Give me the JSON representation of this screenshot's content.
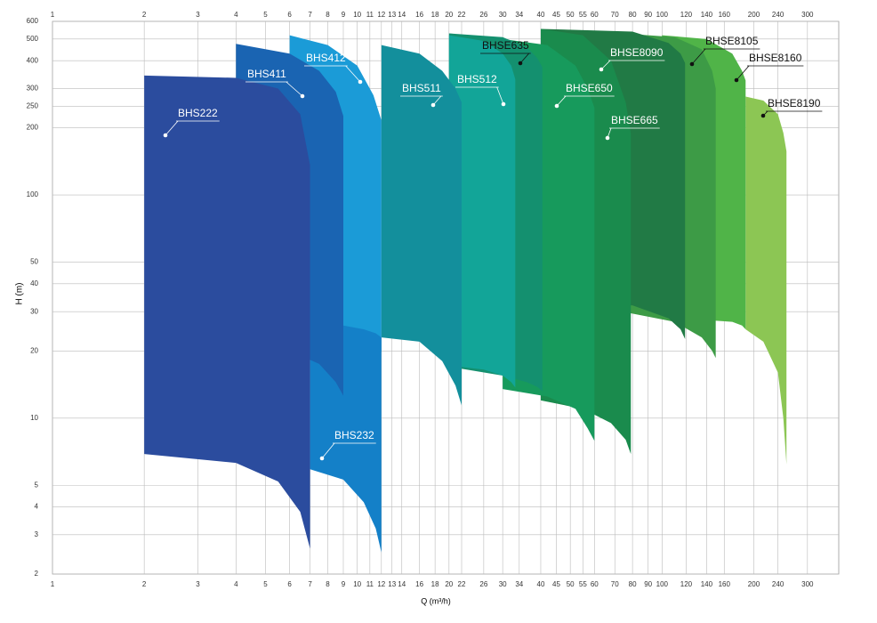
{
  "chart_data": {
    "type": "range-area",
    "x_label": "Q (m³/h)",
    "y_label": "H (m)",
    "x_log": true,
    "y_log": true,
    "grid": true,
    "xlim": [
      1,
      380
    ],
    "ylim": [
      2,
      600
    ],
    "xticks": [
      1,
      2,
      3,
      4,
      5,
      6,
      7,
      8,
      9,
      10,
      11,
      12,
      13,
      14,
      16,
      18,
      20,
      22,
      26,
      30,
      34,
      40,
      45,
      50,
      55,
      60,
      70,
      80,
      90,
      100,
      120,
      140,
      160,
      200,
      240,
      300
    ],
    "yticks": [
      2,
      3,
      4,
      5,
      10,
      20,
      30,
      40,
      50,
      100,
      200,
      250,
      300,
      400,
      500,
      600
    ],
    "series": [
      {
        "name": "BHS222",
        "color": "#2b4c9e",
        "x": [
          2,
          4,
          5.5,
          6.5,
          7
        ],
        "top": [
          343,
          335,
          300,
          230,
          136
        ],
        "bottom": [
          6.9,
          6.3,
          5.2,
          3.8,
          2.6
        ]
      },
      {
        "name": "BHS411",
        "color": "#1a64b2",
        "x": [
          4,
          6,
          7.5,
          8.5,
          9
        ],
        "top": [
          476,
          430,
          360,
          290,
          226
        ],
        "bottom": [
          21,
          20,
          17.5,
          14.5,
          12.6
        ]
      },
      {
        "name": "BHS232",
        "color": "#1480c8",
        "x": [
          7,
          9,
          10.5,
          11.5,
          12
        ],
        "top": [
          26,
          26,
          25,
          24,
          23
        ],
        "bottom": [
          5.9,
          5.3,
          4.2,
          3.2,
          2.5
        ]
      },
      {
        "name": "BHS412",
        "color": "#1b9bd7",
        "x": [
          6,
          8,
          10,
          11.3,
          12
        ],
        "top": [
          520,
          470,
          380,
          280,
          216
        ],
        "bottom": [
          30,
          28,
          24,
          21,
          19.8
        ]
      },
      {
        "name": "BHS511",
        "color": "#138f9c",
        "x": [
          12,
          16,
          19,
          21,
          22
        ],
        "top": [
          470,
          430,
          360,
          300,
          260
        ],
        "bottom": [
          23,
          22,
          18,
          14,
          11.4
        ]
      },
      {
        "name": "BHS512",
        "color": "#12a598",
        "x": [
          20,
          26,
          30,
          32,
          33
        ],
        "top": [
          520,
          490,
          430,
          380,
          330
        ],
        "bottom": [
          17.2,
          16.5,
          15.5,
          14.5,
          13.7
        ]
      },
      {
        "name": "BHSE635",
        "color": "#14906f",
        "x": [
          20,
          30,
          36,
          39,
          40.5
        ],
        "top": [
          530,
          510,
          460,
          410,
          374
        ],
        "bottom": [
          17,
          15.5,
          14.5,
          13.8,
          13.2
        ]
      },
      {
        "name": "BHSE650",
        "color": "#179a5c",
        "x": [
          30,
          42,
          52,
          57,
          60
        ],
        "top": [
          500,
          470,
          380,
          300,
          246
        ],
        "bottom": [
          13.5,
          12.5,
          11,
          9,
          7.9
        ]
      },
      {
        "name": "BHSE665",
        "color": "#1a8b4d",
        "x": [
          40,
          55,
          68,
          76,
          79
        ],
        "top": [
          555,
          520,
          400,
          260,
          189
        ],
        "bottom": [
          12,
          11,
          9.5,
          8,
          6.9
        ]
      },
      {
        "name": "BHSE8090",
        "color": "#217a45",
        "x": [
          40,
          80,
          105,
          115,
          119
        ],
        "top": [
          555,
          540,
          480,
          430,
          390
        ],
        "bottom": [
          33,
          32,
          28,
          25,
          22.6
        ]
      },
      {
        "name": "BHSE8105",
        "color": "#3d9b46",
        "x": [
          74,
          110,
          135,
          146,
          150
        ],
        "top": [
          530,
          510,
          450,
          360,
          300
        ],
        "bottom": [
          30,
          27,
          23,
          20,
          18.6
        ]
      },
      {
        "name": "BHSE8160",
        "color": "#50b448",
        "x": [
          100,
          140,
          170,
          183,
          188
        ],
        "top": [
          520,
          500,
          430,
          360,
          326
        ],
        "bottom": [
          28,
          27.5,
          27,
          26,
          25
        ]
      },
      {
        "name": "BHSE8190",
        "color": "#8cc654",
        "x": [
          188,
          215,
          240,
          250,
          256
        ],
        "top": [
          276,
          265,
          230,
          190,
          157
        ],
        "bottom": [
          25,
          22,
          16,
          10,
          6.2
        ]
      }
    ]
  }
}
